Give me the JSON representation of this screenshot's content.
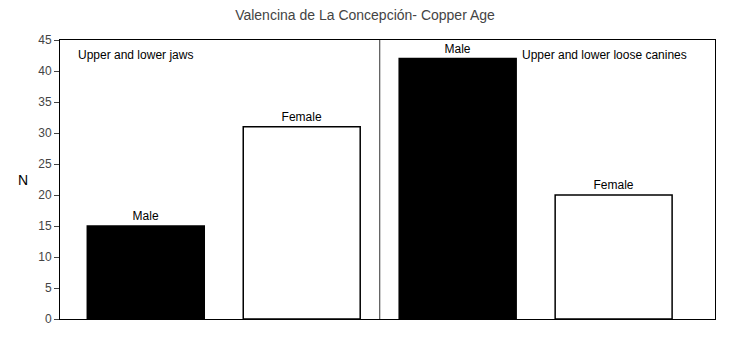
{
  "chart_data": {
    "type": "bar",
    "title": "Valencina de La Concepción- Copper Age",
    "ylabel": "N",
    "categories": [
      "Male",
      "Female",
      "Male",
      "Female"
    ],
    "values": [
      15,
      31,
      42,
      20
    ],
    "colors": [
      "#000000",
      "#ffffff",
      "#000000",
      "#ffffff"
    ],
    "ylim": [
      0,
      45
    ],
    "yticks": [
      0,
      5,
      10,
      15,
      20,
      25,
      30,
      35,
      40,
      45
    ],
    "grid": false,
    "tick_labels": "y",
    "annotations": [
      "Upper and lower jaws",
      "Upper and lower loose canines"
    ]
  }
}
